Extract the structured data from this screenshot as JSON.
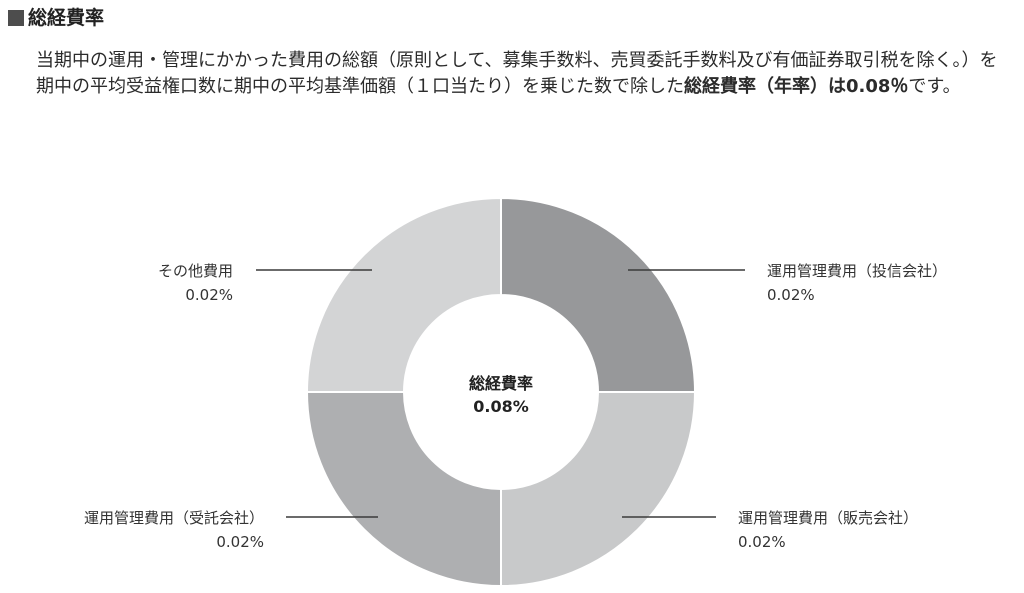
{
  "section_title": "総経費率",
  "description": {
    "part1": "当期中の運用・管理にかかった費用の総額（原則として、募集手数料、売買委託手数料及び有価証券取引税を除く。）を期中の平均受益権口数に期中の平均基準価額（１口当たり）を乗じた数で除した",
    "bold": "総経費率（年率）は0.08％",
    "part2": "です。"
  },
  "chart_data": {
    "type": "pie",
    "style": "donut",
    "center_label": "総経費率",
    "center_value": "0.08%",
    "slices": [
      {
        "label": "運用管理費用（投信会社）",
        "value": 0.02,
        "value_label": "0.02%",
        "color": "#97989a"
      },
      {
        "label": "運用管理費用（販売会社）",
        "value": 0.02,
        "value_label": "0.02%",
        "color": "#c8c9ca"
      },
      {
        "label": "運用管理費用（受託会社）",
        "value": 0.02,
        "value_label": "0.02%",
        "color": "#aeafb1"
      },
      {
        "label": "その他費用",
        "value": 0.02,
        "value_label": "0.02%",
        "color": "#d3d4d5"
      }
    ]
  }
}
